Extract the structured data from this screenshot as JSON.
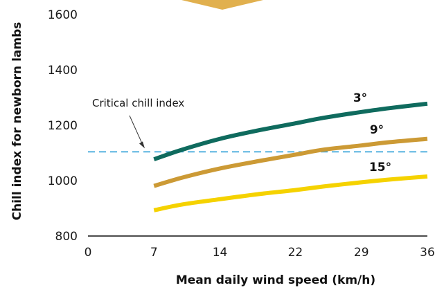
{
  "chart_data": {
    "type": "line",
    "title": "",
    "xlabel": "Mean daily wind speed (km/h)",
    "ylabel": "Chill index for newborn lambs",
    "xlim": [
      0,
      36
    ],
    "ylim": [
      800,
      1600
    ],
    "x_ticks": [
      "0",
      "7",
      "14",
      "22",
      "29",
      "36"
    ],
    "y_ticks": [
      "800",
      "1000",
      "1200",
      "1400",
      "1600"
    ],
    "grid": false,
    "legend": "inline labels",
    "series": [
      {
        "name": "3°",
        "color": "#0f6b5e",
        "x": [
          7,
          10,
          14,
          18,
          22,
          25,
          29,
          32,
          36
        ],
        "y": [
          1077,
          1112,
          1151,
          1181,
          1207,
          1227,
          1248,
          1262,
          1278
        ]
      },
      {
        "name": "9°",
        "color": "#cc9a35",
        "x": [
          7,
          10,
          14,
          18,
          22,
          25,
          29,
          32,
          36
        ],
        "y": [
          981,
          1011,
          1044,
          1070,
          1094,
          1112,
          1127,
          1139,
          1151
        ]
      },
      {
        "name": "15°",
        "color": "#f5d200",
        "x": [
          7,
          10,
          14,
          18,
          22,
          25,
          29,
          32,
          36
        ],
        "y": [
          893,
          914,
          933,
          951,
          966,
          979,
          994,
          1004,
          1015
        ]
      }
    ],
    "reference_lines": [
      {
        "label": "Critical chill index",
        "y": 1104,
        "color": "#3aa6da",
        "style": "dashed"
      }
    ]
  }
}
